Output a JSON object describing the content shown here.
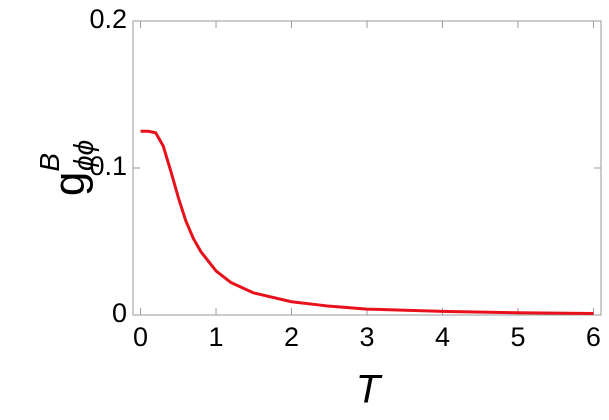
{
  "chart_data": {
    "type": "line",
    "xlabel": "T",
    "ylabel": "g",
    "ylabel_superscript": "B",
    "ylabel_subscript": "ϕϕ",
    "x": [
      0,
      0.1,
      0.2,
      0.3,
      0.4,
      0.5,
      0.6,
      0.7,
      0.8,
      1,
      1.2,
      1.5,
      2,
      2.5,
      3,
      4,
      5,
      6
    ],
    "series": [
      {
        "color": "#e8111b",
        "values": [
          0.125,
          0.125,
          0.124,
          0.115,
          0.098,
          0.08,
          0.064,
          0.052,
          0.043,
          0.03,
          0.022,
          0.015,
          0.009,
          0.006,
          0.004,
          0.0025,
          0.0015,
          0.001
        ]
      }
    ],
    "xlim": [
      -0.1,
      6.1
    ],
    "ylim": [
      0,
      0.2
    ],
    "xticks": [
      0,
      1,
      2,
      3,
      4,
      5,
      6
    ],
    "yticks": [
      0,
      0.1,
      0.2
    ]
  }
}
